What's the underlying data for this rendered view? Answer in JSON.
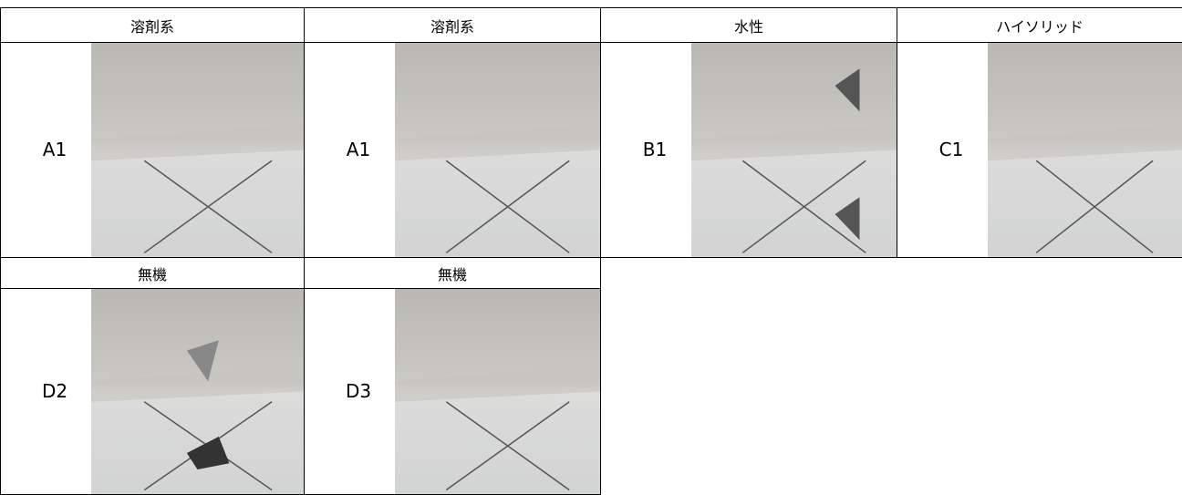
{
  "table": {
    "rows": [
      [
        {
          "header": "溶剤系",
          "label": "A1"
        },
        {
          "header": "溶剤系",
          "label": "A1"
        },
        {
          "header": "水性",
          "label": "B1"
        },
        {
          "header": "ハイソリッド",
          "label": "C1"
        }
      ],
      [
        {
          "header": "無機",
          "label": "D2"
        },
        {
          "header": "無機",
          "label": "D3"
        }
      ]
    ]
  }
}
